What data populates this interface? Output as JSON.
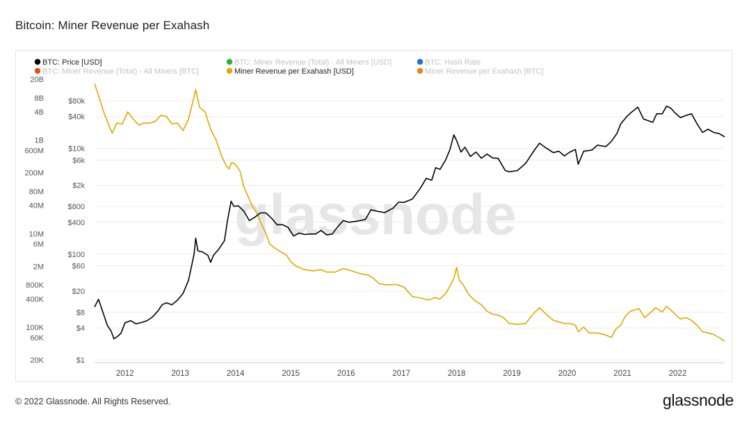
{
  "page": {
    "title": "Bitcoin: Miner Revenue per Exahash",
    "copyright": "© 2022 Glassnode. All Rights Reserved.",
    "logo_text": "glassnode",
    "watermark_text": "glassnode"
  },
  "colors": {
    "price": "#000000",
    "revenue_per_eh": "#e0a800",
    "legend_total_usd": "#2bb52b",
    "legend_hash_rate": "#1f6fd6",
    "legend_total_btc": "#e0521c",
    "legend_per_eh_btc": "#f07f17",
    "grid": "#ececec",
    "watermark": "#e6e6e6"
  },
  "chart_data": {
    "type": "line",
    "legend": [
      {
        "name": "BTC: Price [USD]",
        "color_key": "price",
        "active": true
      },
      {
        "name": "BTC: Miner Revenue (Total) - All Miners [USD]",
        "color_key": "legend_total_usd",
        "active": false
      },
      {
        "name": "BTC: Hash Rate",
        "color_key": "legend_hash_rate",
        "active": false
      },
      {
        "name": "BTC: Miner Revenue (Total) - All Miners [BTC]",
        "color_key": "legend_total_btc",
        "active": false
      },
      {
        "name": "Miner Revenue per Exahash [USD]",
        "color_key": "revenue_per_eh",
        "active": true
      },
      {
        "name": "Miner Revenue per Exahash [BTC]",
        "color_key": "legend_per_eh_btc",
        "active": false
      }
    ],
    "x_axis": {
      "scale": "time",
      "range": [
        2011.45,
        2022.85
      ],
      "ticks": [
        2012,
        2013,
        2014,
        2015,
        2016,
        2017,
        2018,
        2019,
        2020,
        2021,
        2022
      ]
    },
    "y_axis_price": {
      "scale": "log",
      "range": [
        1,
        150000
      ],
      "ticks": [
        {
          "value": 1,
          "label": "$1"
        },
        {
          "value": 4,
          "label": "$4"
        },
        {
          "value": 8,
          "label": "$8"
        },
        {
          "value": 20,
          "label": "$20"
        },
        {
          "value": 60,
          "label": "$60"
        },
        {
          "value": 100,
          "label": "$100"
        },
        {
          "value": 400,
          "label": "$400"
        },
        {
          "value": 800,
          "label": "$800"
        },
        {
          "value": 2000,
          "label": "$2k"
        },
        {
          "value": 6000,
          "label": "$6k"
        },
        {
          "value": 10000,
          "label": "$10k"
        },
        {
          "value": 40000,
          "label": "$40k"
        },
        {
          "value": 80000,
          "label": "$80k"
        }
      ]
    },
    "y_axis_outer": {
      "scale": "log",
      "range": [
        20000,
        20000000000
      ],
      "ticks": [
        {
          "value": 20000,
          "label": "20K"
        },
        {
          "value": 60000,
          "label": "60K"
        },
        {
          "value": 100000,
          "label": "100K"
        },
        {
          "value": 400000,
          "label": "400K"
        },
        {
          "value": 800000,
          "label": "800K"
        },
        {
          "value": 2000000,
          "label": "2M"
        },
        {
          "value": 6000000,
          "label": "6M"
        },
        {
          "value": 10000000,
          "label": "10M"
        },
        {
          "value": 40000000,
          "label": "40M"
        },
        {
          "value": 80000000,
          "label": "80M"
        },
        {
          "value": 200000000,
          "label": "200M"
        },
        {
          "value": 600000000,
          "label": "600M"
        },
        {
          "value": 1000000000,
          "label": "1B"
        },
        {
          "value": 4000000000,
          "label": "4B"
        },
        {
          "value": 8000000000,
          "label": "8B"
        },
        {
          "value": 20000000000,
          "label": "20B"
        }
      ]
    },
    "grid": true,
    "series": [
      {
        "name": "BTC: Price [USD]",
        "axis": "price",
        "color_key": "price",
        "points": [
          [
            2011.45,
            10
          ],
          [
            2011.52,
            14
          ],
          [
            2011.6,
            8
          ],
          [
            2011.68,
            4.5
          ],
          [
            2011.75,
            3.5
          ],
          [
            2011.8,
            2.5
          ],
          [
            2011.87,
            2.8
          ],
          [
            2011.93,
            3.2
          ],
          [
            2012.0,
            5
          ],
          [
            2012.1,
            5.5
          ],
          [
            2012.2,
            4.8
          ],
          [
            2012.3,
            5.1
          ],
          [
            2012.4,
            5.5
          ],
          [
            2012.5,
            6.5
          ],
          [
            2012.6,
            8.5
          ],
          [
            2012.67,
            11
          ],
          [
            2012.75,
            12
          ],
          [
            2012.85,
            11
          ],
          [
            2012.95,
            13.5
          ],
          [
            2013.05,
            18
          ],
          [
            2013.15,
            32
          ],
          [
            2013.25,
            100
          ],
          [
            2013.28,
            200
          ],
          [
            2013.32,
            115
          ],
          [
            2013.4,
            110
          ],
          [
            2013.5,
            95
          ],
          [
            2013.55,
            70
          ],
          [
            2013.6,
            95
          ],
          [
            2013.7,
            125
          ],
          [
            2013.8,
            180
          ],
          [
            2013.85,
            400
          ],
          [
            2013.92,
            1000
          ],
          [
            2013.97,
            800
          ],
          [
            2014.05,
            820
          ],
          [
            2014.15,
            650
          ],
          [
            2014.25,
            430
          ],
          [
            2014.35,
            500
          ],
          [
            2014.45,
            600
          ],
          [
            2014.55,
            600
          ],
          [
            2014.65,
            480
          ],
          [
            2014.75,
            360
          ],
          [
            2014.85,
            360
          ],
          [
            2014.95,
            320
          ],
          [
            2015.05,
            220
          ],
          [
            2015.15,
            250
          ],
          [
            2015.25,
            235
          ],
          [
            2015.35,
            240
          ],
          [
            2015.45,
            240
          ],
          [
            2015.55,
            280
          ],
          [
            2015.65,
            230
          ],
          [
            2015.75,
            240
          ],
          [
            2015.85,
            330
          ],
          [
            2015.95,
            430
          ],
          [
            2016.05,
            400
          ],
          [
            2016.2,
            420
          ],
          [
            2016.35,
            450
          ],
          [
            2016.45,
            690
          ],
          [
            2016.55,
            650
          ],
          [
            2016.7,
            610
          ],
          [
            2016.85,
            740
          ],
          [
            2016.95,
            960
          ],
          [
            2017.05,
            950
          ],
          [
            2017.2,
            1100
          ],
          [
            2017.35,
            1800
          ],
          [
            2017.45,
            2700
          ],
          [
            2017.55,
            2500
          ],
          [
            2017.62,
            4300
          ],
          [
            2017.7,
            4000
          ],
          [
            2017.8,
            6000
          ],
          [
            2017.88,
            9500
          ],
          [
            2017.95,
            18000
          ],
          [
            2018.0,
            14000
          ],
          [
            2018.08,
            8500
          ],
          [
            2018.15,
            10500
          ],
          [
            2018.25,
            7000
          ],
          [
            2018.35,
            8500
          ],
          [
            2018.45,
            6500
          ],
          [
            2018.55,
            7800
          ],
          [
            2018.65,
            6600
          ],
          [
            2018.75,
            6500
          ],
          [
            2018.88,
            3800
          ],
          [
            2018.95,
            3600
          ],
          [
            2019.1,
            3800
          ],
          [
            2019.25,
            5200
          ],
          [
            2019.4,
            9000
          ],
          [
            2019.5,
            12500
          ],
          [
            2019.6,
            10500
          ],
          [
            2019.75,
            8300
          ],
          [
            2019.85,
            8800
          ],
          [
            2019.95,
            7200
          ],
          [
            2020.05,
            8500
          ],
          [
            2020.15,
            9500
          ],
          [
            2020.2,
            5000
          ],
          [
            2020.3,
            8800
          ],
          [
            2020.45,
            9300
          ],
          [
            2020.55,
            11500
          ],
          [
            2020.7,
            10800
          ],
          [
            2020.8,
            13500
          ],
          [
            2020.9,
            19000
          ],
          [
            2020.97,
            29000
          ],
          [
            2021.08,
            40000
          ],
          [
            2021.15,
            47000
          ],
          [
            2021.28,
            60000
          ],
          [
            2021.38,
            36000
          ],
          [
            2021.48,
            33000
          ],
          [
            2021.55,
            31000
          ],
          [
            2021.62,
            45000
          ],
          [
            2021.72,
            45000
          ],
          [
            2021.8,
            63000
          ],
          [
            2021.88,
            57000
          ],
          [
            2021.95,
            47000
          ],
          [
            2022.05,
            38000
          ],
          [
            2022.15,
            42000
          ],
          [
            2022.25,
            45000
          ],
          [
            2022.35,
            29000
          ],
          [
            2022.45,
            20000
          ],
          [
            2022.55,
            23000
          ],
          [
            2022.65,
            20000
          ],
          [
            2022.75,
            19000
          ],
          [
            2022.85,
            16500
          ]
        ]
      },
      {
        "name": "Miner Revenue per Exahash [USD]",
        "axis": "outer",
        "color_key": "revenue_per_eh",
        "points": [
          [
            2011.45,
            16000000000
          ],
          [
            2011.52,
            9000000000
          ],
          [
            2011.6,
            4500000000
          ],
          [
            2011.68,
            2500000000
          ],
          [
            2011.77,
            1400000000
          ],
          [
            2011.85,
            2300000000
          ],
          [
            2011.95,
            2200000000
          ],
          [
            2012.05,
            4000000000
          ],
          [
            2012.15,
            2800000000
          ],
          [
            2012.25,
            2100000000
          ],
          [
            2012.35,
            2300000000
          ],
          [
            2012.45,
            2300000000
          ],
          [
            2012.55,
            2500000000
          ],
          [
            2012.65,
            3400000000
          ],
          [
            2012.75,
            3200000000
          ],
          [
            2012.85,
            2200000000
          ],
          [
            2012.95,
            2300000000
          ],
          [
            2013.05,
            1600000000
          ],
          [
            2013.15,
            2800000000
          ],
          [
            2013.25,
            8500000000
          ],
          [
            2013.28,
            12000000000
          ],
          [
            2013.35,
            5000000000
          ],
          [
            2013.45,
            4000000000
          ],
          [
            2013.55,
            1700000000
          ],
          [
            2013.65,
            1000000000
          ],
          [
            2013.75,
            450000000
          ],
          [
            2013.82,
            300000000
          ],
          [
            2013.88,
            240000000
          ],
          [
            2013.93,
            330000000
          ],
          [
            2014.0,
            300000000
          ],
          [
            2014.08,
            220000000
          ],
          [
            2014.15,
            100000000
          ],
          [
            2014.22,
            65000000
          ],
          [
            2014.3,
            40000000
          ],
          [
            2014.38,
            28000000
          ],
          [
            2014.45,
            18000000
          ],
          [
            2014.55,
            10000000
          ],
          [
            2014.62,
            6000000
          ],
          [
            2014.7,
            5000000
          ],
          [
            2014.8,
            4200000
          ],
          [
            2014.92,
            3500000
          ],
          [
            2015.0,
            2500000
          ],
          [
            2015.1,
            2000000
          ],
          [
            2015.25,
            1700000
          ],
          [
            2015.4,
            1600000
          ],
          [
            2015.55,
            1700000
          ],
          [
            2015.65,
            1500000
          ],
          [
            2015.8,
            1500000
          ],
          [
            2015.95,
            1800000
          ],
          [
            2016.1,
            1600000
          ],
          [
            2016.25,
            1400000
          ],
          [
            2016.4,
            1300000
          ],
          [
            2016.5,
            1100000
          ],
          [
            2016.6,
            850000
          ],
          [
            2016.75,
            800000
          ],
          [
            2016.9,
            820000
          ],
          [
            2017.05,
            720000
          ],
          [
            2017.2,
            450000
          ],
          [
            2017.35,
            420000
          ],
          [
            2017.5,
            380000
          ],
          [
            2017.6,
            430000
          ],
          [
            2017.7,
            400000
          ],
          [
            2017.8,
            520000
          ],
          [
            2017.88,
            750000
          ],
          [
            2017.95,
            1100000
          ],
          [
            2018.0,
            1900000
          ],
          [
            2018.05,
            1000000
          ],
          [
            2018.12,
            800000
          ],
          [
            2018.22,
            500000
          ],
          [
            2018.32,
            380000
          ],
          [
            2018.45,
            300000
          ],
          [
            2018.55,
            220000
          ],
          [
            2018.65,
            190000
          ],
          [
            2018.75,
            180000
          ],
          [
            2018.85,
            160000
          ],
          [
            2018.95,
            120000
          ],
          [
            2019.1,
            115000
          ],
          [
            2019.25,
            120000
          ],
          [
            2019.4,
            200000
          ],
          [
            2019.5,
            260000
          ],
          [
            2019.6,
            200000
          ],
          [
            2019.75,
            140000
          ],
          [
            2019.85,
            130000
          ],
          [
            2019.95,
            120000
          ],
          [
            2020.05,
            120000
          ],
          [
            2020.15,
            110000
          ],
          [
            2020.2,
            80000
          ],
          [
            2020.3,
            100000
          ],
          [
            2020.4,
            75000
          ],
          [
            2020.55,
            75000
          ],
          [
            2020.7,
            68000
          ],
          [
            2020.8,
            60000
          ],
          [
            2020.85,
            80000
          ],
          [
            2020.9,
            95000
          ],
          [
            2020.97,
            110000
          ],
          [
            2021.05,
            170000
          ],
          [
            2021.15,
            220000
          ],
          [
            2021.3,
            250000
          ],
          [
            2021.4,
            160000
          ],
          [
            2021.5,
            200000
          ],
          [
            2021.6,
            260000
          ],
          [
            2021.72,
            210000
          ],
          [
            2021.8,
            280000
          ],
          [
            2021.88,
            230000
          ],
          [
            2021.95,
            190000
          ],
          [
            2022.05,
            150000
          ],
          [
            2022.15,
            160000
          ],
          [
            2022.25,
            140000
          ],
          [
            2022.35,
            110000
          ],
          [
            2022.45,
            80000
          ],
          [
            2022.55,
            75000
          ],
          [
            2022.65,
            70000
          ],
          [
            2022.75,
            60000
          ],
          [
            2022.85,
            50000
          ]
        ]
      }
    ]
  }
}
